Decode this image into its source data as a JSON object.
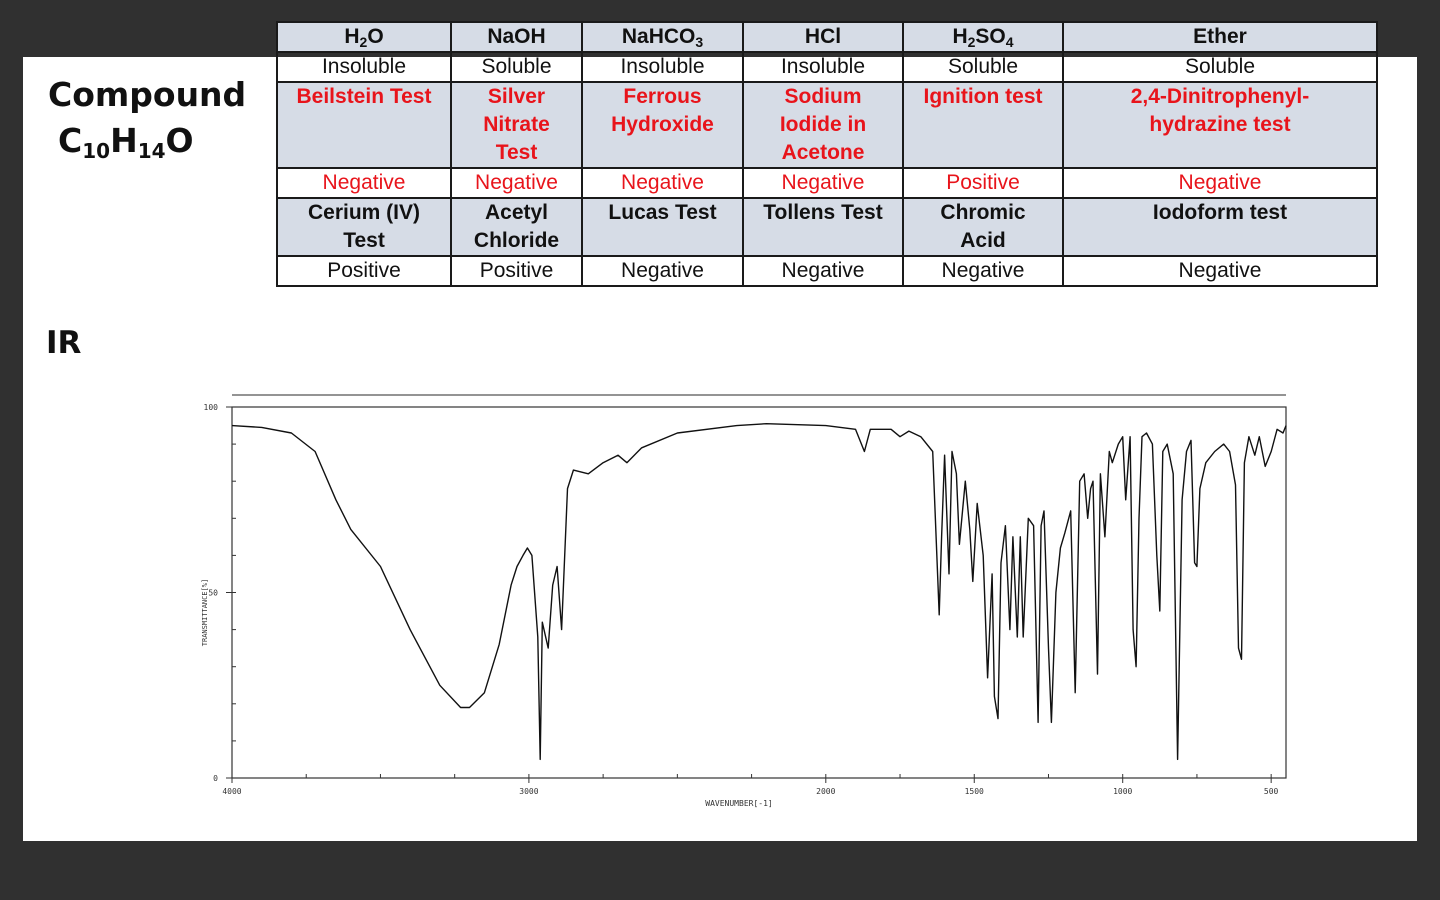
{
  "compound": {
    "label": "Compound",
    "formula_parts": [
      "C",
      "10",
      "H",
      "14",
      "O"
    ]
  },
  "solubility": {
    "headers": [
      {
        "base": "H",
        "sub": "2",
        "rest": "O"
      },
      {
        "base": "NaOH",
        "sub": "",
        "rest": ""
      },
      {
        "base": "NaHCO",
        "sub": "3",
        "rest": ""
      },
      {
        "base": "HCl",
        "sub": "",
        "rest": ""
      },
      {
        "base": "H",
        "sub": "2",
        "rest": "SO",
        "sub2": "4"
      },
      {
        "base": "Ether",
        "sub": "",
        "rest": ""
      }
    ],
    "results": [
      "Insoluble",
      "Soluble",
      "Insoluble",
      "Insoluble",
      "Soluble",
      "Soluble"
    ]
  },
  "tests_row1": {
    "names": [
      "Beilstein Test",
      "Silver Nitrate Test",
      "Ferrous Hydroxide",
      "Sodium Iodide in Acetone",
      "Ignition test",
      "2,4-Dinitrophenyl-hydrazine test"
    ],
    "results": [
      "Negative",
      "Negative",
      "Negative",
      "Negative",
      "Positive",
      "Negative"
    ]
  },
  "tests_row2": {
    "names": [
      "Cerium (IV) Test",
      "Acetyl Chloride",
      "Lucas Test",
      "Tollens Test",
      "Chromic Acid",
      "Iodoform test"
    ],
    "results": [
      "Positive",
      "Positive",
      "Negative",
      "Negative",
      "Negative",
      "Negative"
    ]
  },
  "ir_label": "IR",
  "chart_data": {
    "type": "line",
    "title": "",
    "xlabel": "WAVENUMBER[-1]",
    "ylabel": "TRANSMITTANCE[%]",
    "xlim": [
      4000,
      450
    ],
    "ylim": [
      0,
      100
    ],
    "x_ticks": [
      "4000",
      "3000",
      "2000",
      "1500",
      "1000",
      "500"
    ],
    "y_ticks": [
      "0",
      "50",
      "100"
    ],
    "series": [
      {
        "points": [
          [
            4000,
            95
          ],
          [
            3900,
            94.5
          ],
          [
            3800,
            93
          ],
          [
            3720,
            88
          ],
          [
            3650,
            75
          ],
          [
            3600,
            67
          ],
          [
            3500,
            57
          ],
          [
            3400,
            40
          ],
          [
            3300,
            25
          ],
          [
            3230,
            19
          ],
          [
            3200,
            19
          ],
          [
            3150,
            23
          ],
          [
            3100,
            36
          ],
          [
            3060,
            52
          ],
          [
            3040,
            57
          ],
          [
            3020,
            60
          ],
          [
            3005,
            62
          ],
          [
            2990,
            60
          ],
          [
            2970,
            38
          ],
          [
            2962,
            5
          ],
          [
            2955,
            42
          ],
          [
            2935,
            35
          ],
          [
            2920,
            52
          ],
          [
            2905,
            57
          ],
          [
            2890,
            40
          ],
          [
            2870,
            78
          ],
          [
            2850,
            83
          ],
          [
            2800,
            82
          ],
          [
            2750,
            85
          ],
          [
            2700,
            87
          ],
          [
            2670,
            85
          ],
          [
            2620,
            89
          ],
          [
            2500,
            93
          ],
          [
            2300,
            95
          ],
          [
            2200,
            95.5
          ],
          [
            2000,
            95
          ],
          [
            1900,
            94
          ],
          [
            1870,
            88
          ],
          [
            1850,
            94
          ],
          [
            1780,
            94
          ],
          [
            1750,
            92
          ],
          [
            1720,
            93.5
          ],
          [
            1680,
            92
          ],
          [
            1640,
            88
          ],
          [
            1618,
            44
          ],
          [
            1610,
            65
          ],
          [
            1600,
            87
          ],
          [
            1585,
            55
          ],
          [
            1575,
            88
          ],
          [
            1560,
            82
          ],
          [
            1550,
            63
          ],
          [
            1530,
            80
          ],
          [
            1515,
            67
          ],
          [
            1505,
            53
          ],
          [
            1490,
            74
          ],
          [
            1470,
            60
          ],
          [
            1455,
            27
          ],
          [
            1440,
            55
          ],
          [
            1432,
            22
          ],
          [
            1420,
            16
          ],
          [
            1410,
            58
          ],
          [
            1395,
            68
          ],
          [
            1380,
            40
          ],
          [
            1370,
            65
          ],
          [
            1355,
            38
          ],
          [
            1345,
            65
          ],
          [
            1335,
            38
          ],
          [
            1318,
            70
          ],
          [
            1300,
            68
          ],
          [
            1285,
            15
          ],
          [
            1275,
            68
          ],
          [
            1265,
            72
          ],
          [
            1250,
            35
          ],
          [
            1240,
            15
          ],
          [
            1225,
            50
          ],
          [
            1210,
            62
          ],
          [
            1195,
            66
          ],
          [
            1175,
            72
          ],
          [
            1160,
            23
          ],
          [
            1145,
            80
          ],
          [
            1130,
            82
          ],
          [
            1118,
            70
          ],
          [
            1108,
            78
          ],
          [
            1100,
            80
          ],
          [
            1085,
            28
          ],
          [
            1075,
            82
          ],
          [
            1060,
            65
          ],
          [
            1045,
            88
          ],
          [
            1035,
            85
          ],
          [
            1015,
            90
          ],
          [
            1000,
            92
          ],
          [
            990,
            75
          ],
          [
            975,
            92
          ],
          [
            965,
            40
          ],
          [
            955,
            30
          ],
          [
            945,
            70
          ],
          [
            935,
            92
          ],
          [
            920,
            93
          ],
          [
            900,
            90
          ],
          [
            885,
            60
          ],
          [
            875,
            45
          ],
          [
            865,
            88
          ],
          [
            850,
            90
          ],
          [
            830,
            82
          ],
          [
            815,
            5
          ],
          [
            800,
            75
          ],
          [
            785,
            88
          ],
          [
            770,
            91
          ],
          [
            758,
            58
          ],
          [
            750,
            57
          ],
          [
            740,
            78
          ],
          [
            720,
            85
          ],
          [
            690,
            88
          ],
          [
            660,
            90
          ],
          [
            640,
            88
          ],
          [
            620,
            79
          ],
          [
            610,
            35
          ],
          [
            600,
            32
          ],
          [
            590,
            85
          ],
          [
            575,
            92
          ],
          [
            555,
            87
          ],
          [
            540,
            92
          ],
          [
            520,
            84
          ],
          [
            500,
            88
          ],
          [
            480,
            94
          ],
          [
            460,
            93
          ],
          [
            450,
            95
          ]
        ]
      }
    ]
  }
}
